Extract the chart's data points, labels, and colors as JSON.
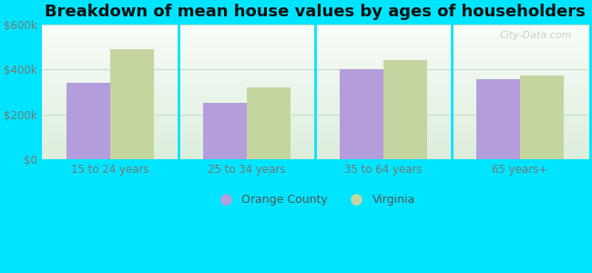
{
  "title": "Breakdown of mean house values by ages of householders",
  "categories": [
    "15 to 24 years",
    "25 to 34 years",
    "35 to 64 years",
    "65 years+"
  ],
  "orange_county_values": [
    340000,
    250000,
    400000,
    355000
  ],
  "virginia_values": [
    490000,
    320000,
    440000,
    370000
  ],
  "orange_county_color": "#b39ddb",
  "virginia_color": "#c5d5a0",
  "ylim": [
    0,
    600000
  ],
  "yticks": [
    0,
    200000,
    400000,
    600000
  ],
  "ytick_labels": [
    "$0",
    "$200k",
    "$400k",
    "$600k"
  ],
  "legend_orange_county": "Orange County",
  "legend_virginia": "Virginia",
  "background_color": "#00e5ff",
  "plot_bg_color": "#e8f5e9",
  "bar_width": 0.32,
  "title_fontsize": 13,
  "watermark": "City-Data.com",
  "tick_label_color": "#777777",
  "grid_color": "#c8ddc8",
  "separator_color": "#00e5ff"
}
